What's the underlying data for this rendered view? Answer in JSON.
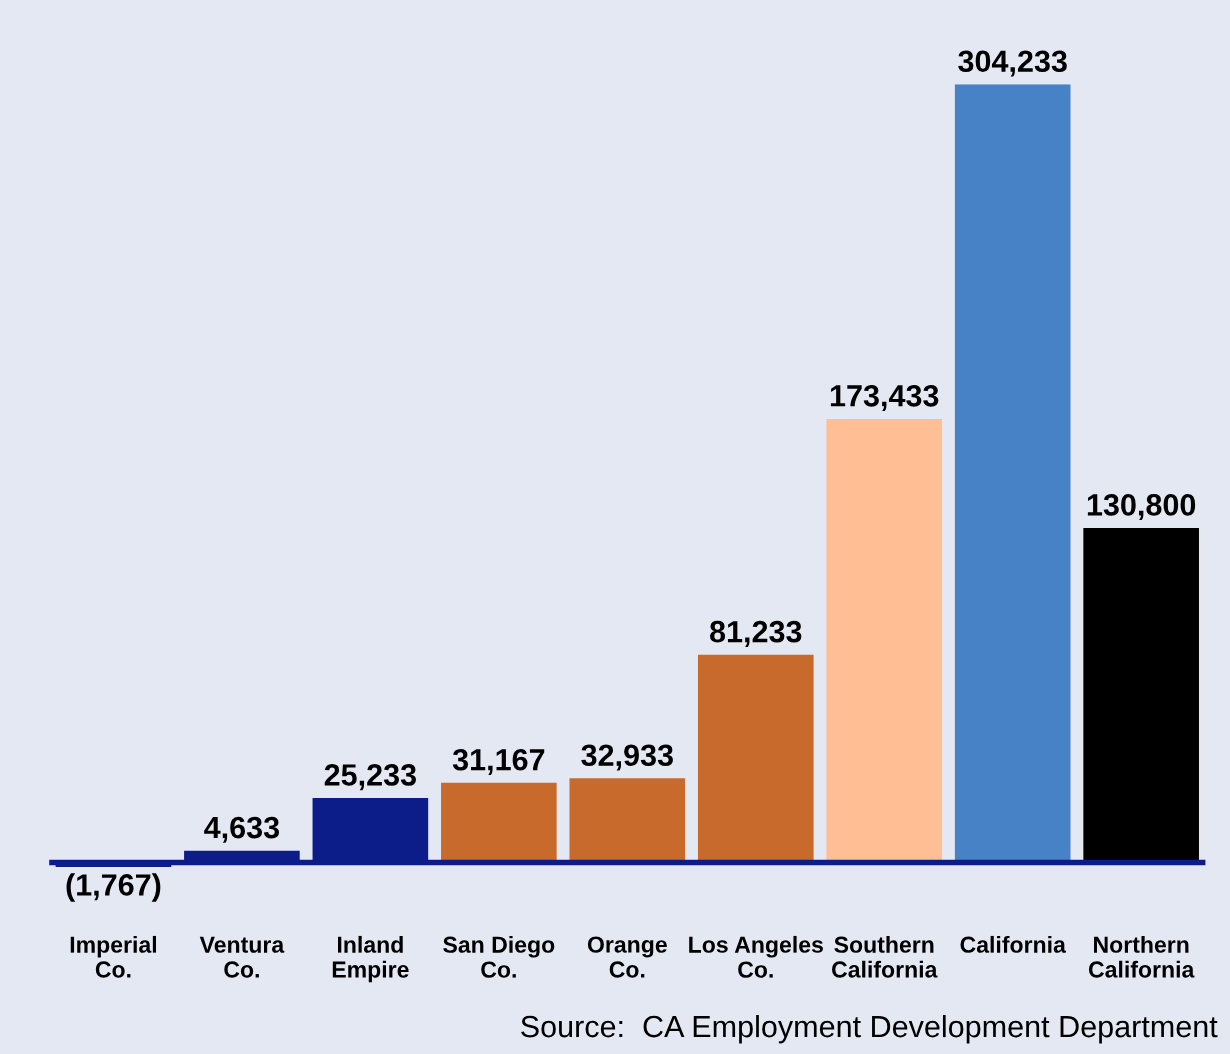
{
  "chart_data": {
    "type": "bar",
    "categories": [
      "Imperial\nCo.",
      "Ventura\nCo.",
      "Inland\nEmpire",
      "San Diego\nCo.",
      "Orange\nCo.",
      "Los Angeles\nCo.",
      "Southern\nCalifornia",
      "California",
      "Northern\nCalifornia"
    ],
    "values": [
      -1767,
      4633,
      25233,
      31167,
      32933,
      81233,
      173433,
      304233,
      130800
    ],
    "colors": [
      "#0c1c88",
      "#0c1c88",
      "#0c1c88",
      "#c86a2c",
      "#c86a2c",
      "#c86a2c",
      "#ffbe94",
      "#4782c6",
      "#000000"
    ],
    "value_labels": [
      "(1,767)",
      "4,633",
      "25,233",
      "31,167",
      "32,933",
      "81,233",
      "173,433",
      "304,233",
      "130,800"
    ],
    "tick_labels": "x",
    "annotations": [
      "Source:  CA Employment Development Department"
    ]
  }
}
